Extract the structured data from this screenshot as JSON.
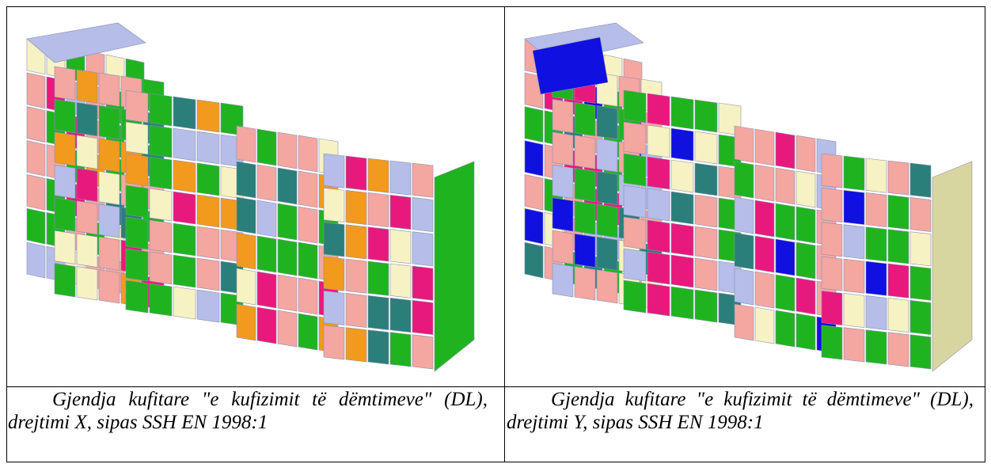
{
  "figure": {
    "left": {
      "image": "building-3d-damage-model-x",
      "caption": "Gjendja kufitare \"e kufizimit të dëmtimeve\" (DL), drejtimi X, sipas SSH EN 1998:1"
    },
    "right": {
      "image": "building-3d-damage-model-y",
      "caption": "Gjendja kufitare \"e kufizimit të dëmtimeve\" (DL), drejtimi Y, sipas SSH EN 1998:1"
    }
  },
  "palette": {
    "green": "#1fb41f",
    "pink": "#f4a6a0",
    "magenta": "#e8197c",
    "blue": "#1010e0",
    "teal": "#2a7f7a",
    "cream": "#f7f2c4",
    "lavender": "#b5bde8",
    "orange": "#f29a1e",
    "red": "#d91a1a",
    "khaki": "#d8d6a0"
  }
}
